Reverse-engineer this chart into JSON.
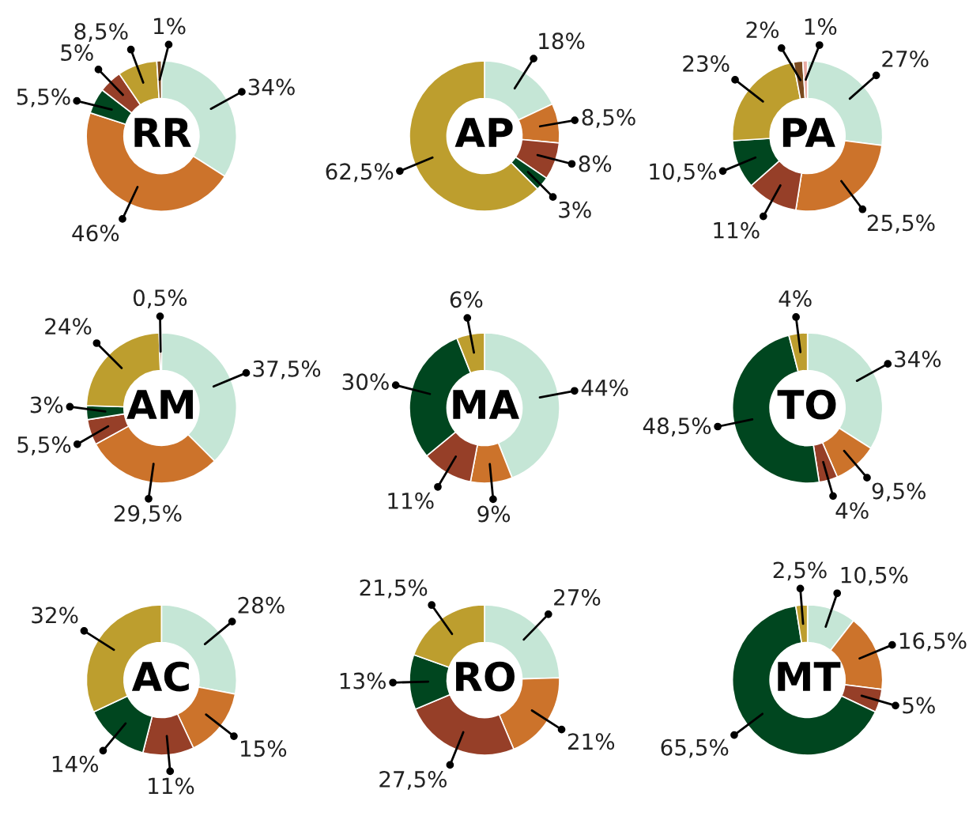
{
  "chart_data": [
    {
      "type": "donut",
      "title": "RR",
      "categories": [
        null,
        null,
        null,
        null,
        null,
        null
      ],
      "values": [
        34,
        46,
        5.5,
        5,
        8.5,
        1
      ],
      "colors": [
        "#c5e6d6",
        "#cc732b",
        "#00461f",
        "#963f28",
        "#bd9e2e",
        "#7a4a1e"
      ],
      "value_labels": [
        "34%",
        "46%",
        "5,5%",
        "5%",
        "8,5%",
        "1%"
      ]
    },
    {
      "type": "donut",
      "title": "AP",
      "categories": [
        null,
        null,
        null,
        null,
        null
      ],
      "values": [
        18,
        8.5,
        8,
        3,
        62.5
      ],
      "colors": [
        "#c5e6d6",
        "#cc732b",
        "#963f28",
        "#00461f",
        "#bd9e2e"
      ],
      "value_labels": [
        "18%",
        "8,5%",
        "8%",
        "3%",
        "62,5%"
      ]
    },
    {
      "type": "donut",
      "title": "PA",
      "categories": [
        null,
        null,
        null,
        null,
        null,
        null,
        null
      ],
      "values": [
        27,
        25.5,
        11,
        10.5,
        23,
        2,
        1
      ],
      "colors": [
        "#c5e6d6",
        "#cc732b",
        "#963f28",
        "#00461f",
        "#bd9e2e",
        "#7a4a1e",
        "#e8a9a0"
      ],
      "value_labels": [
        "27%",
        "25,5%",
        "11%",
        "10,5%",
        "23%",
        "2%",
        "1%"
      ]
    },
    {
      "type": "donut",
      "title": "AM",
      "categories": [
        null,
        null,
        null,
        null,
        null,
        null
      ],
      "values": [
        37.5,
        29.5,
        5.5,
        3,
        24,
        0.5
      ],
      "colors": [
        "#c5e6d6",
        "#cc732b",
        "#963f28",
        "#00461f",
        "#bd9e2e",
        "#7a4a1e"
      ],
      "value_labels": [
        "37,5%",
        "29,5%",
        "5,5%",
        "3%",
        "24%",
        "0,5%"
      ]
    },
    {
      "type": "donut",
      "title": "MA",
      "categories": [
        null,
        null,
        null,
        null,
        null
      ],
      "values": [
        44,
        9,
        11,
        30,
        6
      ],
      "colors": [
        "#c5e6d6",
        "#cc732b",
        "#963f28",
        "#00461f",
        "#bd9e2e"
      ],
      "value_labels": [
        "44%",
        "9%",
        "11%",
        "30%",
        "6%"
      ]
    },
    {
      "type": "donut",
      "title": "TO",
      "categories": [
        null,
        null,
        null,
        null,
        null
      ],
      "values": [
        34,
        9.5,
        4,
        48.5,
        4
      ],
      "colors": [
        "#c5e6d6",
        "#cc732b",
        "#963f28",
        "#00461f",
        "#bd9e2e"
      ],
      "value_labels": [
        "34%",
        "9,5%",
        "4%",
        "48,5%",
        "4%"
      ]
    },
    {
      "type": "donut",
      "title": "AC",
      "categories": [
        null,
        null,
        null,
        null,
        null
      ],
      "values": [
        28,
        15,
        11,
        14,
        32
      ],
      "colors": [
        "#c5e6d6",
        "#cc732b",
        "#963f28",
        "#00461f",
        "#bd9e2e"
      ],
      "value_labels": [
        "28%",
        "15%",
        "11%",
        "14%",
        "32%"
      ]
    },
    {
      "type": "donut",
      "title": "RO",
      "categories": [
        null,
        null,
        null,
        null,
        null
      ],
      "values": [
        27,
        21,
        27.5,
        13,
        21.5
      ],
      "colors": [
        "#c5e6d6",
        "#cc732b",
        "#963f28",
        "#00461f",
        "#bd9e2e"
      ],
      "value_labels": [
        "27%",
        "21%",
        "27,5%",
        "13%",
        "21,5%"
      ]
    },
    {
      "type": "donut",
      "title": "MT",
      "categories": [
        null,
        null,
        null,
        null,
        null
      ],
      "values": [
        10.5,
        16.5,
        5,
        65.5,
        2.5
      ],
      "colors": [
        "#c5e6d6",
        "#cc732b",
        "#963f28",
        "#00461f",
        "#bd9e2e"
      ],
      "value_labels": [
        "10,5%",
        "16,5%",
        "5%",
        "65,5%",
        "2,5%"
      ]
    }
  ]
}
